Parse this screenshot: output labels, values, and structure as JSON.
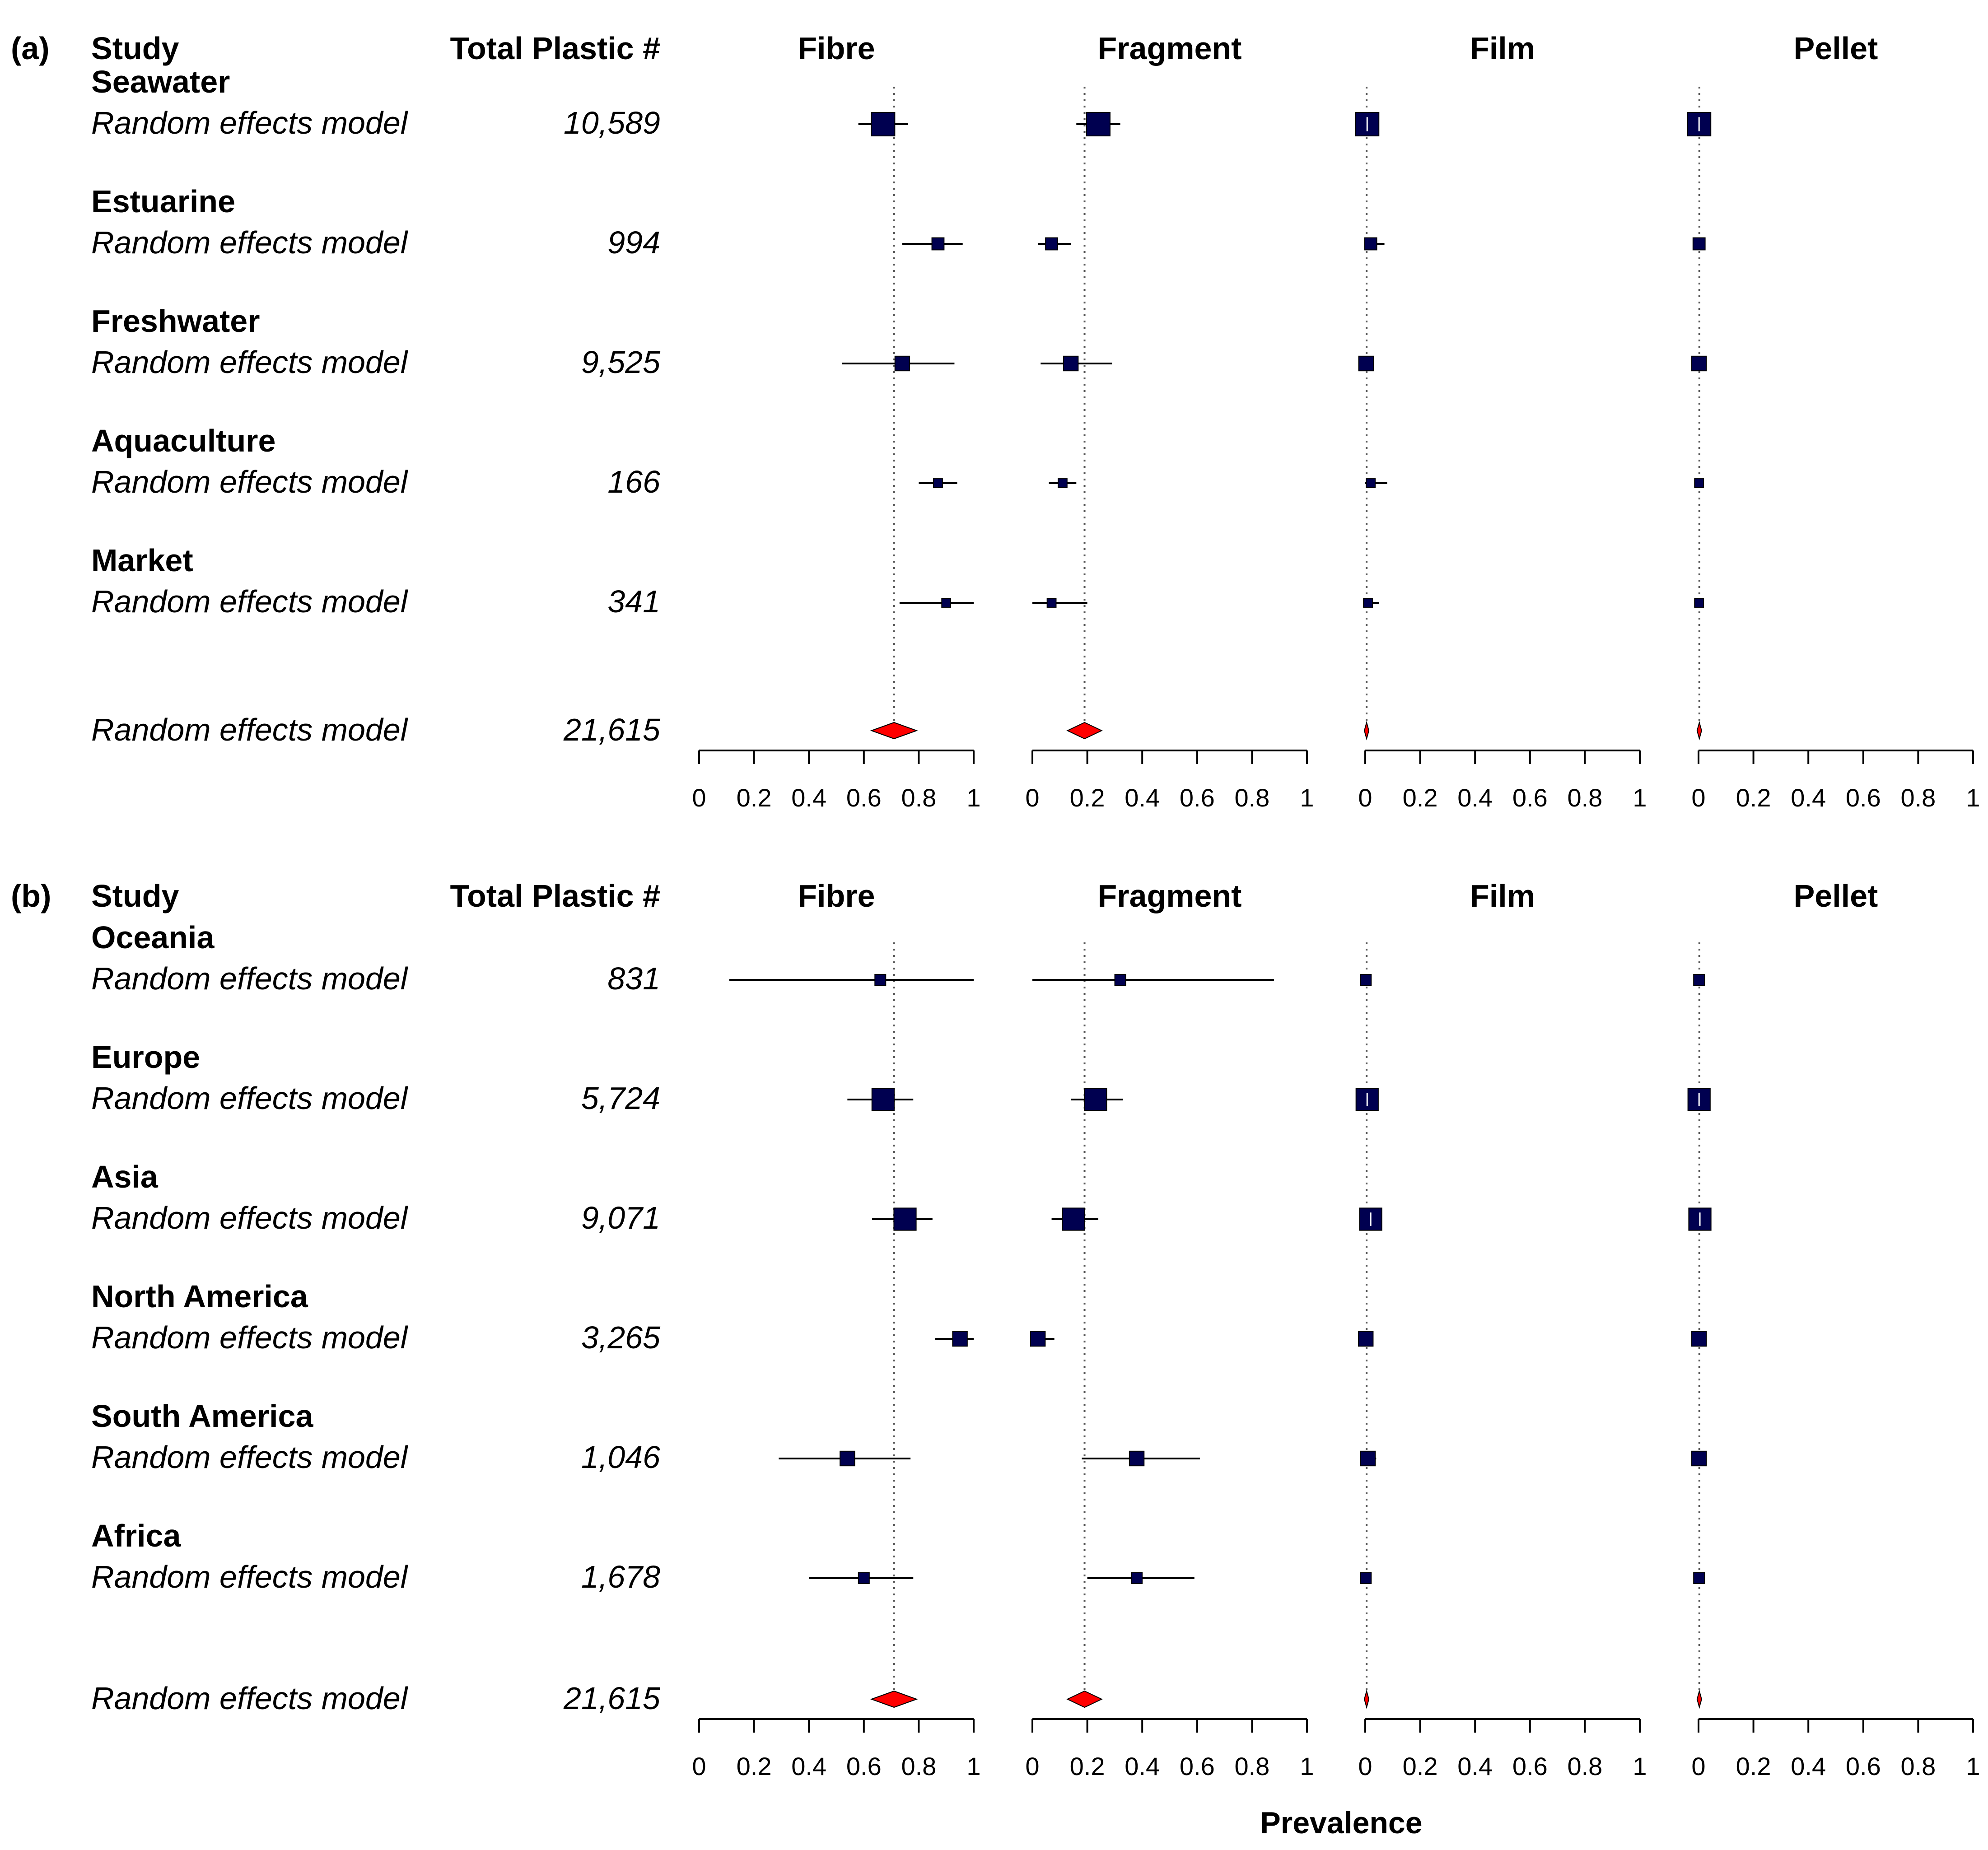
{
  "chart_data": {
    "type": "forest",
    "x_axis_label": "Prevalence",
    "x_ticks": [
      "0",
      "0.2",
      "0.4",
      "0.6",
      "0.8",
      "1"
    ],
    "xlim": [
      0,
      1
    ],
    "pooled_model_label": "Random effects model",
    "columns": {
      "study": "Study",
      "total": "Total Plastic #",
      "categories": [
        "Fibre",
        "Fragment",
        "Film",
        "Pellet"
      ]
    },
    "panels": [
      {
        "label": "(a)",
        "pooled": {
          "fibre": 0.71,
          "fragment": 0.19,
          "film": 0.005,
          "pellet": 0.003,
          "total": "21,615"
        },
        "groups": [
          {
            "name": "Seawater",
            "total": "10,589",
            "fibre": {
              "est": 0.67,
              "lo": 0.58,
              "hi": 0.76,
              "w": 3
            },
            "fragment": {
              "est": 0.24,
              "lo": 0.16,
              "hi": 0.32,
              "w": 3
            },
            "film": {
              "est": 0.007,
              "lo": 0.0,
              "hi": 0.02,
              "w": 3
            },
            "pellet": {
              "est": 0.002,
              "lo": 0.0,
              "hi": 0.01,
              "w": 3
            }
          },
          {
            "name": "Estuarine",
            "total": "994",
            "fibre": {
              "est": 0.87,
              "lo": 0.74,
              "hi": 0.96,
              "w": 1.2
            },
            "fragment": {
              "est": 0.07,
              "lo": 0.02,
              "hi": 0.14,
              "w": 1.2
            },
            "film": {
              "est": 0.02,
              "lo": 0.0,
              "hi": 0.07,
              "w": 1.2
            },
            "pellet": {
              "est": 0.002,
              "lo": 0.0,
              "hi": 0.01,
              "w": 1.2
            }
          },
          {
            "name": "Freshwater",
            "total": "9,525",
            "fibre": {
              "est": 0.74,
              "lo": 0.52,
              "hi": 0.93,
              "w": 1.6
            },
            "fragment": {
              "est": 0.14,
              "lo": 0.03,
              "hi": 0.29,
              "w": 1.6
            },
            "film": {
              "est": 0.003,
              "lo": 0.0,
              "hi": 0.01,
              "w": 1.6
            },
            "pellet": {
              "est": 0.002,
              "lo": 0.0,
              "hi": 0.01,
              "w": 1.6
            }
          },
          {
            "name": "Aquaculture",
            "total": "166",
            "fibre": {
              "est": 0.87,
              "lo": 0.8,
              "hi": 0.94,
              "w": 0.7
            },
            "fragment": {
              "est": 0.11,
              "lo": 0.06,
              "hi": 0.16,
              "w": 0.7
            },
            "film": {
              "est": 0.02,
              "lo": 0.0,
              "hi": 0.08,
              "w": 0.7
            },
            "pellet": {
              "est": 0.002,
              "lo": 0.0,
              "hi": 0.005,
              "w": 0.7
            }
          },
          {
            "name": "Market",
            "total": "341",
            "fibre": {
              "est": 0.9,
              "lo": 0.73,
              "hi": 1.0,
              "w": 0.7
            },
            "fragment": {
              "est": 0.07,
              "lo": 0.0,
              "hi": 0.2,
              "w": 0.7
            },
            "film": {
              "est": 0.01,
              "lo": 0.0,
              "hi": 0.05,
              "w": 0.7
            },
            "pellet": {
              "est": 0.002,
              "lo": 0.0,
              "hi": 0.01,
              "w": 0.7
            }
          }
        ]
      },
      {
        "label": "(b)",
        "pooled": {
          "fibre": 0.71,
          "fragment": 0.19,
          "film": 0.005,
          "pellet": 0.003,
          "total": "21,615"
        },
        "groups": [
          {
            "name": "Oceania",
            "total": "831",
            "fibre": {
              "est": 0.66,
              "lo": 0.11,
              "hi": 1.0,
              "w": 1
            },
            "fragment": {
              "est": 0.32,
              "lo": 0.0,
              "hi": 0.88,
              "w": 1
            },
            "film": {
              "est": 0.002,
              "lo": 0.0,
              "hi": 0.01,
              "w": 1
            },
            "pellet": {
              "est": 0.002,
              "lo": 0.0,
              "hi": 0.01,
              "w": 1
            }
          },
          {
            "name": "Europe",
            "total": "5,724",
            "fibre": {
              "est": 0.67,
              "lo": 0.54,
              "hi": 0.78,
              "w": 2.8
            },
            "fragment": {
              "est": 0.23,
              "lo": 0.14,
              "hi": 0.33,
              "w": 2.8
            },
            "film": {
              "est": 0.007,
              "lo": 0.0,
              "hi": 0.02,
              "w": 2.8
            },
            "pellet": {
              "est": 0.002,
              "lo": 0.0,
              "hi": 0.01,
              "w": 2.8
            }
          },
          {
            "name": "Asia",
            "total": "9,071",
            "fibre": {
              "est": 0.75,
              "lo": 0.63,
              "hi": 0.85,
              "w": 2.8
            },
            "fragment": {
              "est": 0.15,
              "lo": 0.07,
              "hi": 0.24,
              "w": 2.8
            },
            "film": {
              "est": 0.02,
              "lo": 0.0,
              "hi": 0.05,
              "w": 2.8
            },
            "pellet": {
              "est": 0.005,
              "lo": 0.0,
              "hi": 0.02,
              "w": 2.8
            }
          },
          {
            "name": "North America",
            "total": "3,265",
            "fibre": {
              "est": 0.95,
              "lo": 0.86,
              "hi": 1.0,
              "w": 1.6
            },
            "fragment": {
              "est": 0.02,
              "lo": 0.0,
              "hi": 0.08,
              "w": 1.6
            },
            "film": {
              "est": 0.002,
              "lo": 0.0,
              "hi": 0.01,
              "w": 1.6
            },
            "pellet": {
              "est": 0.002,
              "lo": 0.0,
              "hi": 0.01,
              "w": 1.6
            }
          },
          {
            "name": "South America",
            "total": "1,046",
            "fibre": {
              "est": 0.54,
              "lo": 0.29,
              "hi": 0.77,
              "w": 1.6
            },
            "fragment": {
              "est": 0.38,
              "lo": 0.18,
              "hi": 0.61,
              "w": 1.6
            },
            "film": {
              "est": 0.01,
              "lo": 0.0,
              "hi": 0.04,
              "w": 1.6
            },
            "pellet": {
              "est": 0.002,
              "lo": 0.0,
              "hi": 0.01,
              "w": 1.6
            }
          },
          {
            "name": "Africa",
            "total": "1,678",
            "fibre": {
              "est": 0.6,
              "lo": 0.4,
              "hi": 0.78,
              "w": 1
            },
            "fragment": {
              "est": 0.38,
              "lo": 0.2,
              "hi": 0.59,
              "w": 1
            },
            "film": {
              "est": 0.002,
              "lo": 0.0,
              "hi": 0.01,
              "w": 1
            },
            "pellet": {
              "est": 0.002,
              "lo": 0.0,
              "hi": 0.01,
              "w": 1
            }
          }
        ]
      }
    ]
  },
  "colors": {
    "square": "#000050",
    "diamond": "#ff0000",
    "ink": "#000000",
    "reference_line": "#555555"
  }
}
